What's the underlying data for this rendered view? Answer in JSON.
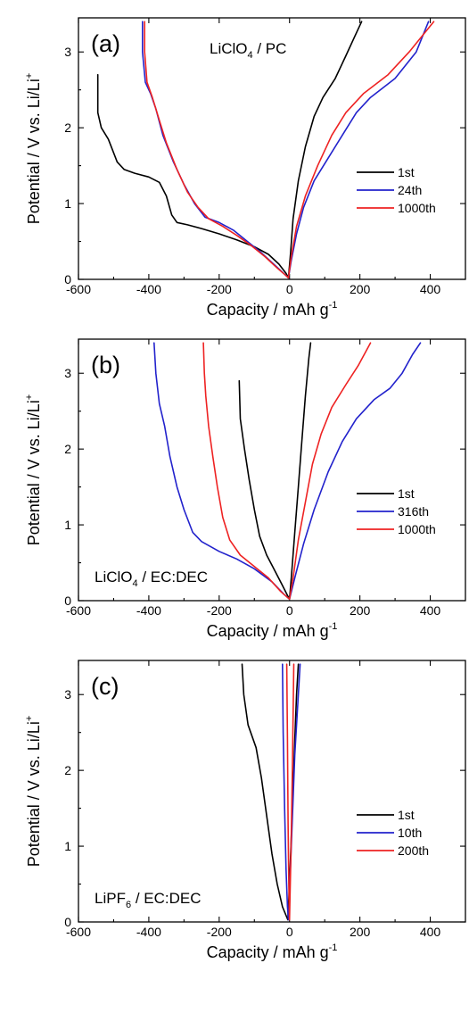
{
  "chart_data": [
    {
      "type": "line",
      "panel_label": "(a)",
      "annotation": "LiClO",
      "annotation_sub": "4",
      "annotation_suffix": " / PC",
      "xlabel": "Capacity / mAh g",
      "xlabel_sup": "-1",
      "ylabel": "Potential / V vs. Li/Li",
      "ylabel_sup": "+",
      "xlim": [
        -600,
        500
      ],
      "ylim": [
        0,
        3.45
      ],
      "xticks": [
        "-600",
        "-400",
        "-200",
        "0",
        "200",
        "400"
      ],
      "xtick_values": [
        -600,
        -400,
        -200,
        0,
        200,
        400
      ],
      "yticks": [
        "0",
        "1",
        "2",
        "3"
      ],
      "ytick_values": [
        0,
        1,
        2,
        3
      ],
      "legend_position": "right",
      "series": [
        {
          "name": "1st",
          "color": "#000000",
          "segments": [
            [
              [
                -545,
                2.7
              ],
              [
                -545,
                2.2
              ],
              [
                -535,
                2.0
              ],
              [
                -515,
                1.85
              ],
              [
                -490,
                1.55
              ],
              [
                -470,
                1.45
              ],
              [
                -440,
                1.4
              ],
              [
                -400,
                1.35
              ],
              [
                -370,
                1.28
              ],
              [
                -350,
                1.1
              ],
              [
                -335,
                0.85
              ],
              [
                -320,
                0.75
              ],
              [
                -290,
                0.72
              ],
              [
                -250,
                0.67
              ],
              [
                -200,
                0.6
              ],
              [
                -150,
                0.52
              ],
              [
                -100,
                0.43
              ],
              [
                -60,
                0.33
              ],
              [
                -30,
                0.2
              ],
              [
                -10,
                0.08
              ],
              [
                -3,
                0.02
              ]
            ],
            [
              [
                -3,
                0.02
              ],
              [
                3,
                0.35
              ],
              [
                10,
                0.8
              ],
              [
                25,
                1.3
              ],
              [
                45,
                1.75
              ],
              [
                70,
                2.15
              ],
              [
                95,
                2.4
              ],
              [
                130,
                2.65
              ],
              [
                160,
                2.95
              ],
              [
                185,
                3.2
              ],
              [
                205,
                3.4
              ]
            ]
          ]
        },
        {
          "name": "24th",
          "color": "#2222cc",
          "segments": [
            [
              [
                -418,
                3.4
              ],
              [
                -418,
                3.0
              ],
              [
                -410,
                2.6
              ],
              [
                -395,
                2.45
              ],
              [
                -380,
                2.25
              ],
              [
                -360,
                1.9
              ],
              [
                -330,
                1.55
              ],
              [
                -300,
                1.25
              ],
              [
                -270,
                1.0
              ],
              [
                -240,
                0.82
              ],
              [
                -200,
                0.75
              ],
              [
                -160,
                0.65
              ],
              [
                -120,
                0.5
              ],
              [
                -80,
                0.35
              ],
              [
                -40,
                0.18
              ],
              [
                -10,
                0.05
              ],
              [
                -3,
                0.02
              ]
            ],
            [
              [
                -3,
                0.02
              ],
              [
                5,
                0.25
              ],
              [
                20,
                0.6
              ],
              [
                40,
                0.95
              ],
              [
                70,
                1.3
              ],
              [
                110,
                1.6
              ],
              [
                150,
                1.9
              ],
              [
                190,
                2.2
              ],
              [
                230,
                2.4
              ],
              [
                300,
                2.65
              ],
              [
                360,
                3.0
              ],
              [
                395,
                3.4
              ]
            ]
          ]
        },
        {
          "name": "1000th",
          "color": "#ee2222",
          "segments": [
            [
              [
                -412,
                3.4
              ],
              [
                -412,
                3.0
              ],
              [
                -405,
                2.6
              ],
              [
                -390,
                2.4
              ],
              [
                -370,
                2.1
              ],
              [
                -350,
                1.8
              ],
              [
                -320,
                1.45
              ],
              [
                -290,
                1.15
              ],
              [
                -260,
                0.95
              ],
              [
                -230,
                0.8
              ],
              [
                -190,
                0.7
              ],
              [
                -150,
                0.58
              ],
              [
                -110,
                0.45
              ],
              [
                -70,
                0.3
              ],
              [
                -35,
                0.15
              ],
              [
                -10,
                0.05
              ],
              [
                -3,
                0.02
              ]
            ],
            [
              [
                -3,
                0.02
              ],
              [
                5,
                0.3
              ],
              [
                20,
                0.7
              ],
              [
                45,
                1.1
              ],
              [
                80,
                1.5
              ],
              [
                120,
                1.9
              ],
              [
                160,
                2.2
              ],
              [
                210,
                2.45
              ],
              [
                280,
                2.7
              ],
              [
                340,
                3.0
              ],
              [
                375,
                3.2
              ],
              [
                410,
                3.4
              ]
            ]
          ]
        }
      ]
    },
    {
      "type": "line",
      "panel_label": "(b)",
      "annotation": "LiClO",
      "annotation_sub": "4",
      "annotation_suffix": " / EC:DEC",
      "xlabel": "Capacity / mAh g",
      "xlabel_sup": "-1",
      "ylabel": "Potential / V vs. Li/Li",
      "ylabel_sup": "+",
      "xlim": [
        -600,
        500
      ],
      "ylim": [
        0,
        3.45
      ],
      "xticks": [
        "-600",
        "-400",
        "-200",
        "0",
        "200",
        "400"
      ],
      "xtick_values": [
        -600,
        -400,
        -200,
        0,
        200,
        400
      ],
      "yticks": [
        "0",
        "1",
        "2",
        "3"
      ],
      "ytick_values": [
        0,
        1,
        2,
        3
      ],
      "legend_position": "right",
      "series": [
        {
          "name": "1st",
          "color": "#000000",
          "segments": [
            [
              [
                -143,
                2.9
              ],
              [
                -140,
                2.4
              ],
              [
                -128,
                2.0
              ],
              [
                -115,
                1.6
              ],
              [
                -100,
                1.2
              ],
              [
                -85,
                0.85
              ],
              [
                -65,
                0.6
              ],
              [
                -40,
                0.38
              ],
              [
                -20,
                0.2
              ],
              [
                -5,
                0.06
              ],
              [
                0,
                0.02
              ]
            ],
            [
              [
                0,
                0.02
              ],
              [
                5,
                0.3
              ],
              [
                15,
                0.9
              ],
              [
                25,
                1.5
              ],
              [
                35,
                2.1
              ],
              [
                45,
                2.7
              ],
              [
                55,
                3.2
              ],
              [
                60,
                3.4
              ]
            ]
          ]
        },
        {
          "name": "316th",
          "color": "#2222cc",
          "segments": [
            [
              [
                -385,
                3.4
              ],
              [
                -380,
                3.0
              ],
              [
                -370,
                2.6
              ],
              [
                -355,
                2.3
              ],
              [
                -340,
                1.9
              ],
              [
                -320,
                1.5
              ],
              [
                -300,
                1.2
              ],
              [
                -275,
                0.9
              ],
              [
                -250,
                0.78
              ],
              [
                -200,
                0.65
              ],
              [
                -150,
                0.55
              ],
              [
                -100,
                0.42
              ],
              [
                -50,
                0.25
              ],
              [
                -15,
                0.08
              ],
              [
                0,
                0.02
              ]
            ],
            [
              [
                0,
                0.02
              ],
              [
                15,
                0.3
              ],
              [
                40,
                0.75
              ],
              [
                70,
                1.2
              ],
              [
                110,
                1.7
              ],
              [
                150,
                2.1
              ],
              [
                190,
                2.4
              ],
              [
                240,
                2.65
              ],
              [
                285,
                2.8
              ],
              [
                320,
                3.0
              ],
              [
                350,
                3.25
              ],
              [
                372,
                3.4
              ]
            ]
          ]
        },
        {
          "name": "1000th",
          "color": "#ee2222",
          "segments": [
            [
              [
                -245,
                3.4
              ],
              [
                -242,
                3.0
              ],
              [
                -238,
                2.7
              ],
              [
                -230,
                2.3
              ],
              [
                -218,
                1.9
              ],
              [
                -205,
                1.5
              ],
              [
                -190,
                1.1
              ],
              [
                -170,
                0.8
              ],
              [
                -140,
                0.6
              ],
              [
                -100,
                0.45
              ],
              [
                -60,
                0.3
              ],
              [
                -25,
                0.12
              ],
              [
                0,
                0.02
              ]
            ],
            [
              [
                0,
                0.02
              ],
              [
                10,
                0.3
              ],
              [
                25,
                0.8
              ],
              [
                45,
                1.3
              ],
              [
                65,
                1.8
              ],
              [
                90,
                2.2
              ],
              [
                120,
                2.55
              ],
              [
                160,
                2.85
              ],
              [
                195,
                3.1
              ],
              [
                230,
                3.4
              ]
            ]
          ]
        }
      ]
    },
    {
      "type": "line",
      "panel_label": "(c)",
      "annotation": "LiPF",
      "annotation_sub": "6",
      "annotation_suffix": " / EC:DEC",
      "xlabel": "Capacity / mAh g",
      "xlabel_sup": "-1",
      "ylabel": "Potential / V vs. Li/Li",
      "ylabel_sup": "+",
      "xlim": [
        -600,
        500
      ],
      "ylim": [
        0,
        3.45
      ],
      "xticks": [
        "-600",
        "-400",
        "-200",
        "0",
        "200",
        "400"
      ],
      "xtick_values": [
        -600,
        -400,
        -200,
        0,
        200,
        400
      ],
      "yticks": [
        "0",
        "1",
        "2",
        "3"
      ],
      "ytick_values": [
        0,
        1,
        2,
        3
      ],
      "legend_position": "right",
      "series": [
        {
          "name": "1st",
          "color": "#000000",
          "segments": [
            [
              [
                -135,
                3.4
              ],
              [
                -130,
                3.0
              ],
              [
                -118,
                2.6
              ],
              [
                -95,
                2.3
              ],
              [
                -80,
                1.9
              ],
              [
                -65,
                1.4
              ],
              [
                -50,
                0.9
              ],
              [
                -35,
                0.5
              ],
              [
                -20,
                0.2
              ],
              [
                -5,
                0.03
              ]
            ],
            [
              [
                -5,
                0.03
              ],
              [
                0,
                0.5
              ],
              [
                8,
                1.5
              ],
              [
                15,
                2.4
              ],
              [
                20,
                3.0
              ],
              [
                25,
                3.4
              ]
            ]
          ]
        },
        {
          "name": "10th",
          "color": "#2222cc",
          "segments": [
            [
              [
                -20,
                3.4
              ],
              [
                -18,
                2.5
              ],
              [
                -14,
                1.5
              ],
              [
                -10,
                0.7
              ],
              [
                -6,
                0.2
              ],
              [
                -3,
                0.03
              ]
            ],
            [
              [
                -3,
                0.03
              ],
              [
                5,
                1.0
              ],
              [
                15,
                2.2
              ],
              [
                30,
                3.4
              ]
            ]
          ]
        },
        {
          "name": "200th",
          "color": "#ee2222",
          "segments": [
            [
              [
                -8,
                3.4
              ],
              [
                -6,
                2.4
              ],
              [
                -4,
                1.3
              ],
              [
                -2,
                0.5
              ],
              [
                0,
                0.03
              ]
            ],
            [
              [
                0,
                0.03
              ],
              [
                4,
                0.9
              ],
              [
                8,
                2.0
              ],
              [
                12,
                3.4
              ]
            ]
          ]
        }
      ]
    }
  ]
}
